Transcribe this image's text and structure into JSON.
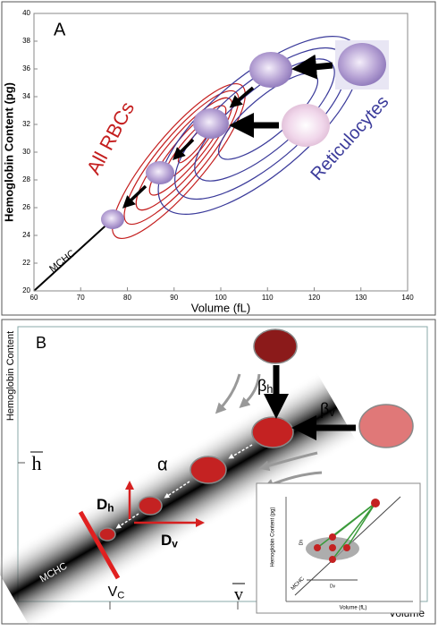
{
  "panel_a": {
    "label": "A",
    "x_axis_label": "Volume (fL)",
    "y_axis_label": "Hemoglobin Content (pg)",
    "xticks": [
      60,
      70,
      80,
      90,
      100,
      110,
      120,
      130,
      140
    ],
    "yticks": [
      20,
      22,
      24,
      26,
      28,
      30,
      32,
      34,
      36,
      38,
      40
    ],
    "annotations": {
      "all_rbcs": "All RBCs",
      "reticulocytes": "Reticulocytes",
      "mchc": "MCHC"
    }
  },
  "panel_b": {
    "label": "B",
    "y_axis_label": "Hemoglobin Content",
    "x_axis_label": "Volume",
    "h_mean": "h",
    "v_mean": "v",
    "v_c": {
      "main": "V",
      "sub": "C"
    },
    "beta_h": {
      "main": "β",
      "sub": "h"
    },
    "beta_v": {
      "main": "β",
      "sub": "v"
    },
    "alpha": "α",
    "d_h": {
      "main": "D",
      "sub": "h"
    },
    "d_v": {
      "main": "D",
      "sub": "v"
    },
    "mchc": "MCHC",
    "inset": {
      "y_axis_label": "Hemoglobin Content (pg)",
      "x_axis_label": "Volume (fL)",
      "mchc": "MCHC",
      "d_h": "Dh",
      "d_v": "Dv"
    }
  }
}
